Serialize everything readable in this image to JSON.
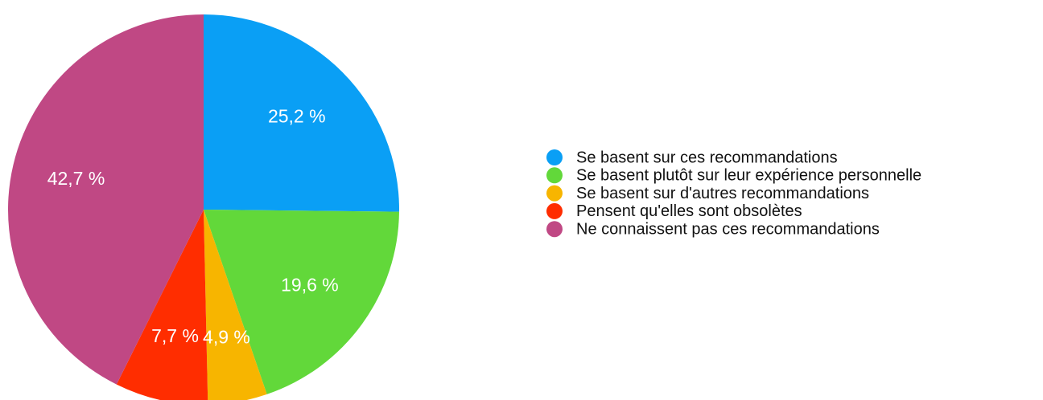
{
  "chart_data": {
    "type": "pie",
    "categories": [
      "Se basent sur ces recommandations",
      "Se basent plutôt sur leur expérience personnelle",
      "Se basent sur d'autres recommandations",
      "Pensent qu'elles sont obsolètes",
      "Ne connaissent pas ces recommandations"
    ],
    "values": [
      25.2,
      19.6,
      4.9,
      7.7,
      42.7
    ],
    "value_labels": [
      "25,2 %",
      "19,6 %",
      "4,9 %",
      "7,7 %",
      "42,7 %"
    ],
    "colors": [
      "#0a9ff5",
      "#62d83a",
      "#f7b500",
      "#ff2d00",
      "#c04884"
    ],
    "legend": "right"
  }
}
